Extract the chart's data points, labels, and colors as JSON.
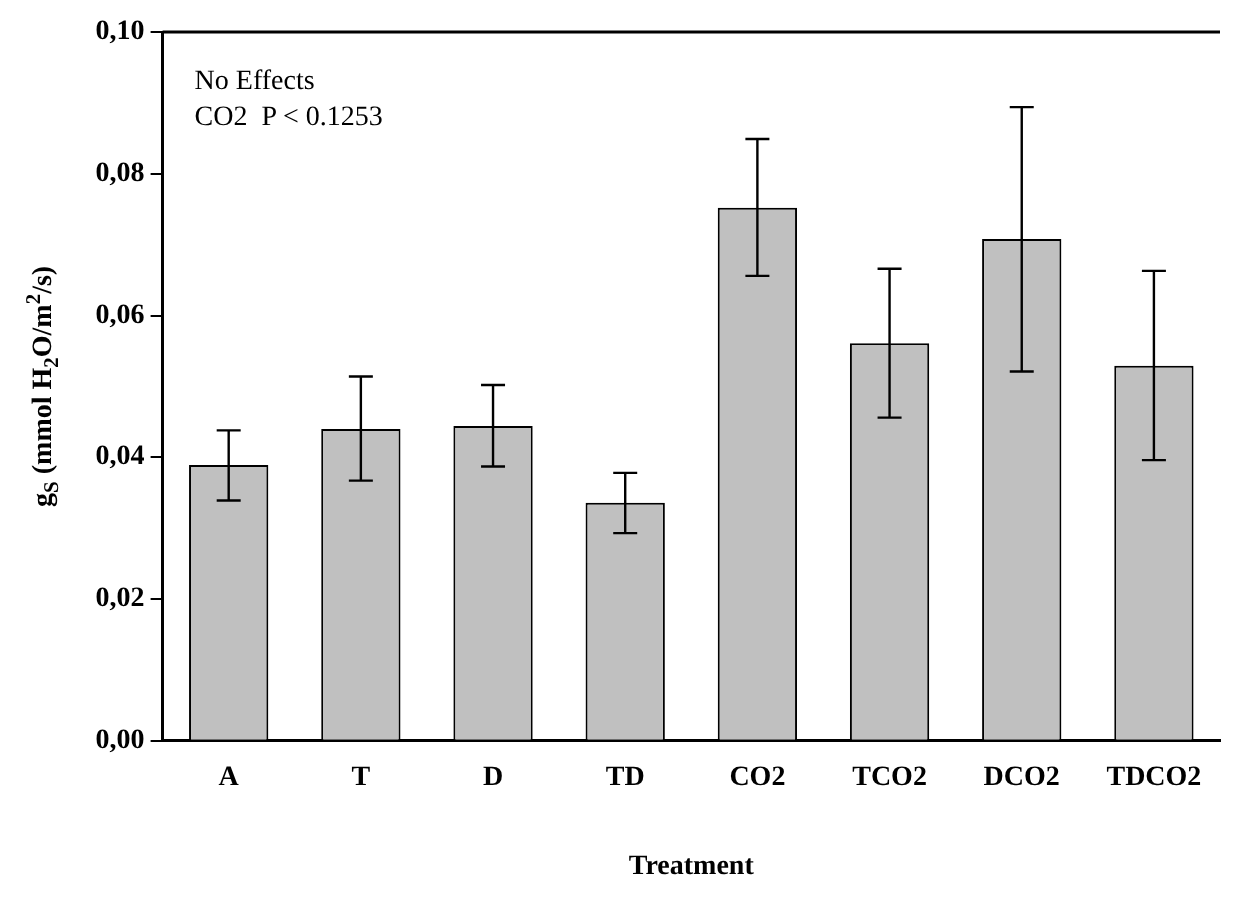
{
  "chart_data": {
    "type": "bar",
    "xlabel": "Treatment",
    "ylabel": "g$_{S}$ (mmol H$_{2}$O/m$^{2}$/s)",
    "categories": [
      "A",
      "T",
      "D",
      "TD",
      "CO2",
      "TCO2",
      "DCO2",
      "TDCO2"
    ],
    "values": [
      0.0389,
      0.044,
      0.0444,
      0.0336,
      0.0752,
      0.0561,
      0.0708,
      0.0529
    ],
    "errors": [
      [
        0.0339,
        0.0438
      ],
      [
        0.0367,
        0.0514
      ],
      [
        0.0387,
        0.0502
      ],
      [
        0.0293,
        0.0378
      ],
      [
        0.0656,
        0.0849
      ],
      [
        0.0456,
        0.0666
      ],
      [
        0.0521,
        0.0894
      ],
      [
        0.0396,
        0.0663
      ]
    ],
    "color": "#c0c0c0",
    "ylim": [
      0,
      0.1
    ],
    "yticks": [
      {
        "value": 0,
        "label": "0,00"
      },
      {
        "value": 0.02,
        "label": "0,02"
      },
      {
        "value": 0.04,
        "label": "0,04"
      },
      {
        "value": 0.06,
        "label": "0,06"
      },
      {
        "value": 0.08,
        "label": "0,08"
      },
      {
        "value": 0.1,
        "label": "0,10"
      }
    ],
    "annotations": [
      "No Effects",
      "CO2  P < 0.1253"
    ],
    "grid": false,
    "legend": false
  }
}
